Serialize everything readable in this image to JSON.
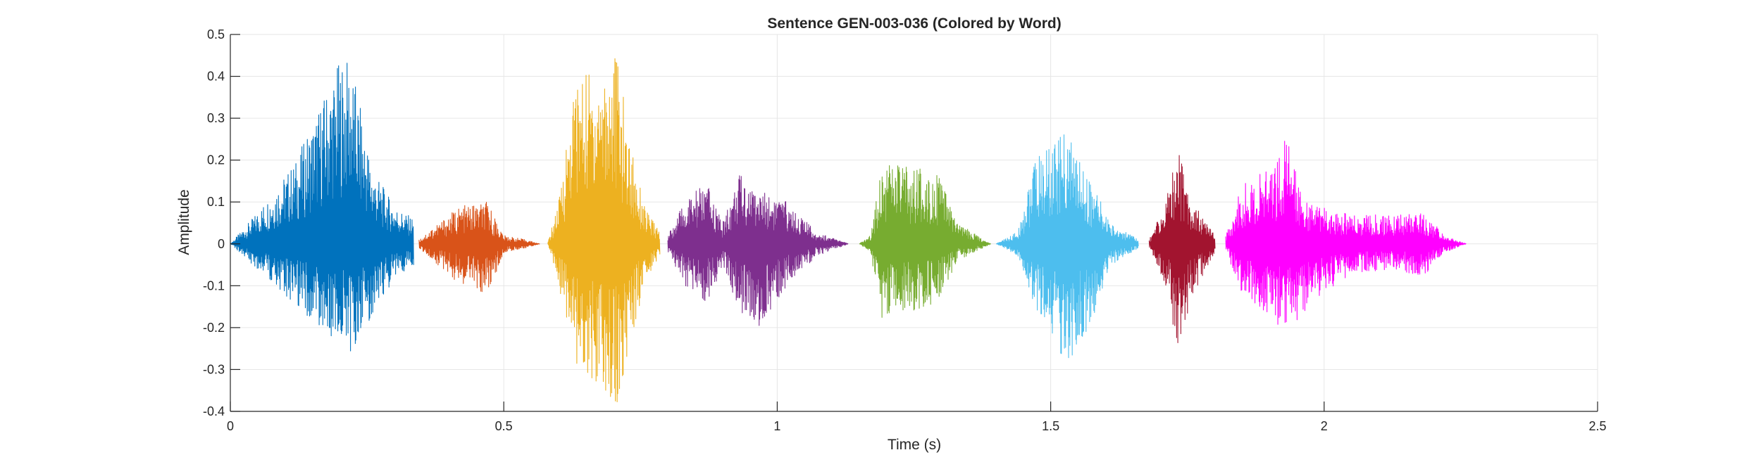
{
  "chart_data": {
    "type": "line",
    "title": "Sentence GEN-003-036 (Colored by Word)",
    "xlabel": "Time (s)",
    "ylabel": "Amplitude",
    "xlim": [
      0,
      2.5
    ],
    "ylim": [
      -0.4,
      0.5
    ],
    "xticks": [
      0,
      0.5,
      1,
      1.5,
      2,
      2.5
    ],
    "xtick_labels": [
      "0",
      "0.5",
      "1",
      "1.5",
      "2",
      "2.5"
    ],
    "yticks": [
      -0.4,
      -0.3,
      -0.2,
      -0.1,
      0,
      0.1,
      0.2,
      0.3,
      0.4,
      0.5
    ],
    "ytick_labels": [
      "-0.4",
      "-0.3",
      "-0.2",
      "-0.1",
      "0",
      "0.1",
      "0.2",
      "0.3",
      "0.4",
      "0.5"
    ],
    "grid": true,
    "series": [
      {
        "color": "#0072BD",
        "start": 0.0,
        "end": 0.335,
        "env_x": [
          0.0,
          0.04,
          0.12,
          0.2,
          0.22,
          0.26,
          0.3,
          0.335
        ],
        "env_top": [
          0.0,
          0.06,
          0.2,
          0.44,
          0.44,
          0.18,
          0.09,
          0.06
        ],
        "env_bot": [
          0.0,
          -0.05,
          -0.15,
          -0.24,
          -0.26,
          -0.17,
          -0.08,
          -0.05
        ]
      },
      {
        "color": "#D95319",
        "start": 0.345,
        "end": 0.565,
        "env_x": [
          0.345,
          0.37,
          0.42,
          0.47,
          0.5,
          0.54,
          0.565
        ],
        "env_top": [
          0.01,
          0.04,
          0.09,
          0.1,
          0.02,
          0.01,
          0.0
        ],
        "env_bot": [
          -0.01,
          -0.04,
          -0.1,
          -0.12,
          -0.02,
          -0.01,
          0.0
        ]
      },
      {
        "color": "#EDB120",
        "start": 0.58,
        "end": 0.785,
        "env_x": [
          0.58,
          0.6,
          0.63,
          0.68,
          0.705,
          0.73,
          0.76,
          0.785
        ],
        "env_top": [
          0.0,
          0.1,
          0.4,
          0.44,
          0.47,
          0.25,
          0.08,
          0.03
        ],
        "env_bot": [
          0.0,
          -0.1,
          -0.3,
          -0.36,
          -0.4,
          -0.24,
          -0.08,
          -0.03
        ]
      },
      {
        "color": "#7E2F8E",
        "start": 0.8,
        "end": 1.13,
        "env_x": [
          0.8,
          0.83,
          0.87,
          0.9,
          0.93,
          0.97,
          1.02,
          1.07,
          1.13
        ],
        "env_top": [
          0.02,
          0.1,
          0.15,
          0.05,
          0.17,
          0.13,
          0.1,
          0.03,
          0.0
        ],
        "env_bot": [
          -0.02,
          -0.1,
          -0.14,
          -0.06,
          -0.16,
          -0.2,
          -0.1,
          -0.03,
          0.0
        ]
      },
      {
        "color": "#77AC30",
        "start": 1.15,
        "end": 1.39,
        "env_x": [
          1.15,
          1.17,
          1.19,
          1.25,
          1.29,
          1.33,
          1.39
        ],
        "env_top": [
          0.0,
          0.02,
          0.2,
          0.18,
          0.18,
          0.05,
          0.0
        ],
        "env_bot": [
          0.0,
          -0.02,
          -0.18,
          -0.16,
          -0.14,
          -0.04,
          0.0
        ]
      },
      {
        "color": "#4DBEEE",
        "start": 1.4,
        "end": 1.66,
        "env_x": [
          1.4,
          1.44,
          1.47,
          1.53,
          1.57,
          1.61,
          1.66
        ],
        "env_top": [
          0.0,
          0.03,
          0.2,
          0.27,
          0.16,
          0.05,
          0.01
        ],
        "env_bot": [
          0.0,
          -0.03,
          -0.15,
          -0.29,
          -0.2,
          -0.05,
          -0.01
        ]
      },
      {
        "color": "#A2142F",
        "start": 1.68,
        "end": 1.8,
        "env_x": [
          1.68,
          1.71,
          1.73,
          1.76,
          1.8
        ],
        "env_top": [
          0.01,
          0.1,
          0.24,
          0.1,
          0.02
        ],
        "env_bot": [
          -0.01,
          -0.1,
          -0.25,
          -0.12,
          -0.02
        ]
      },
      {
        "color": "#FF00FF",
        "start": 1.82,
        "end": 2.26,
        "env_x": [
          1.82,
          1.85,
          1.9,
          1.93,
          1.97,
          2.05,
          2.13,
          2.18,
          2.22,
          2.26
        ],
        "env_top": [
          0.02,
          0.14,
          0.18,
          0.26,
          0.1,
          0.07,
          0.07,
          0.08,
          0.02,
          0.0
        ],
        "env_bot": [
          -0.02,
          -0.12,
          -0.17,
          -0.22,
          -0.15,
          -0.07,
          -0.06,
          -0.08,
          -0.02,
          0.0
        ]
      }
    ]
  }
}
